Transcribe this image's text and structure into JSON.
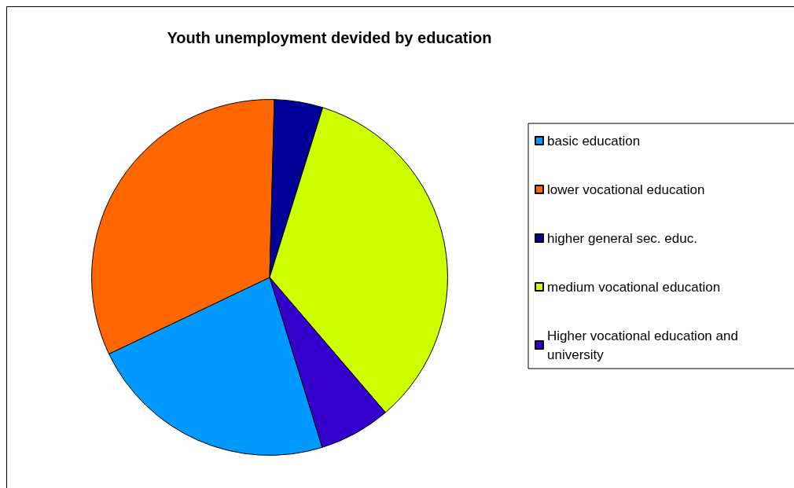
{
  "chart_data": {
    "type": "pie",
    "title": "Youth unemployment devided by education",
    "categories": [
      "basic education",
      "lower vocational education",
      "higher general sec. educ.",
      "medium vocational education",
      "Higher vocational education and university"
    ],
    "values": [
      22.7,
      32.5,
      4.4,
      33.9,
      6.5
    ],
    "colors": [
      "#0099ff",
      "#ff6600",
      "#000099",
      "#ccff00",
      "#3300cc"
    ],
    "legend": "right"
  }
}
